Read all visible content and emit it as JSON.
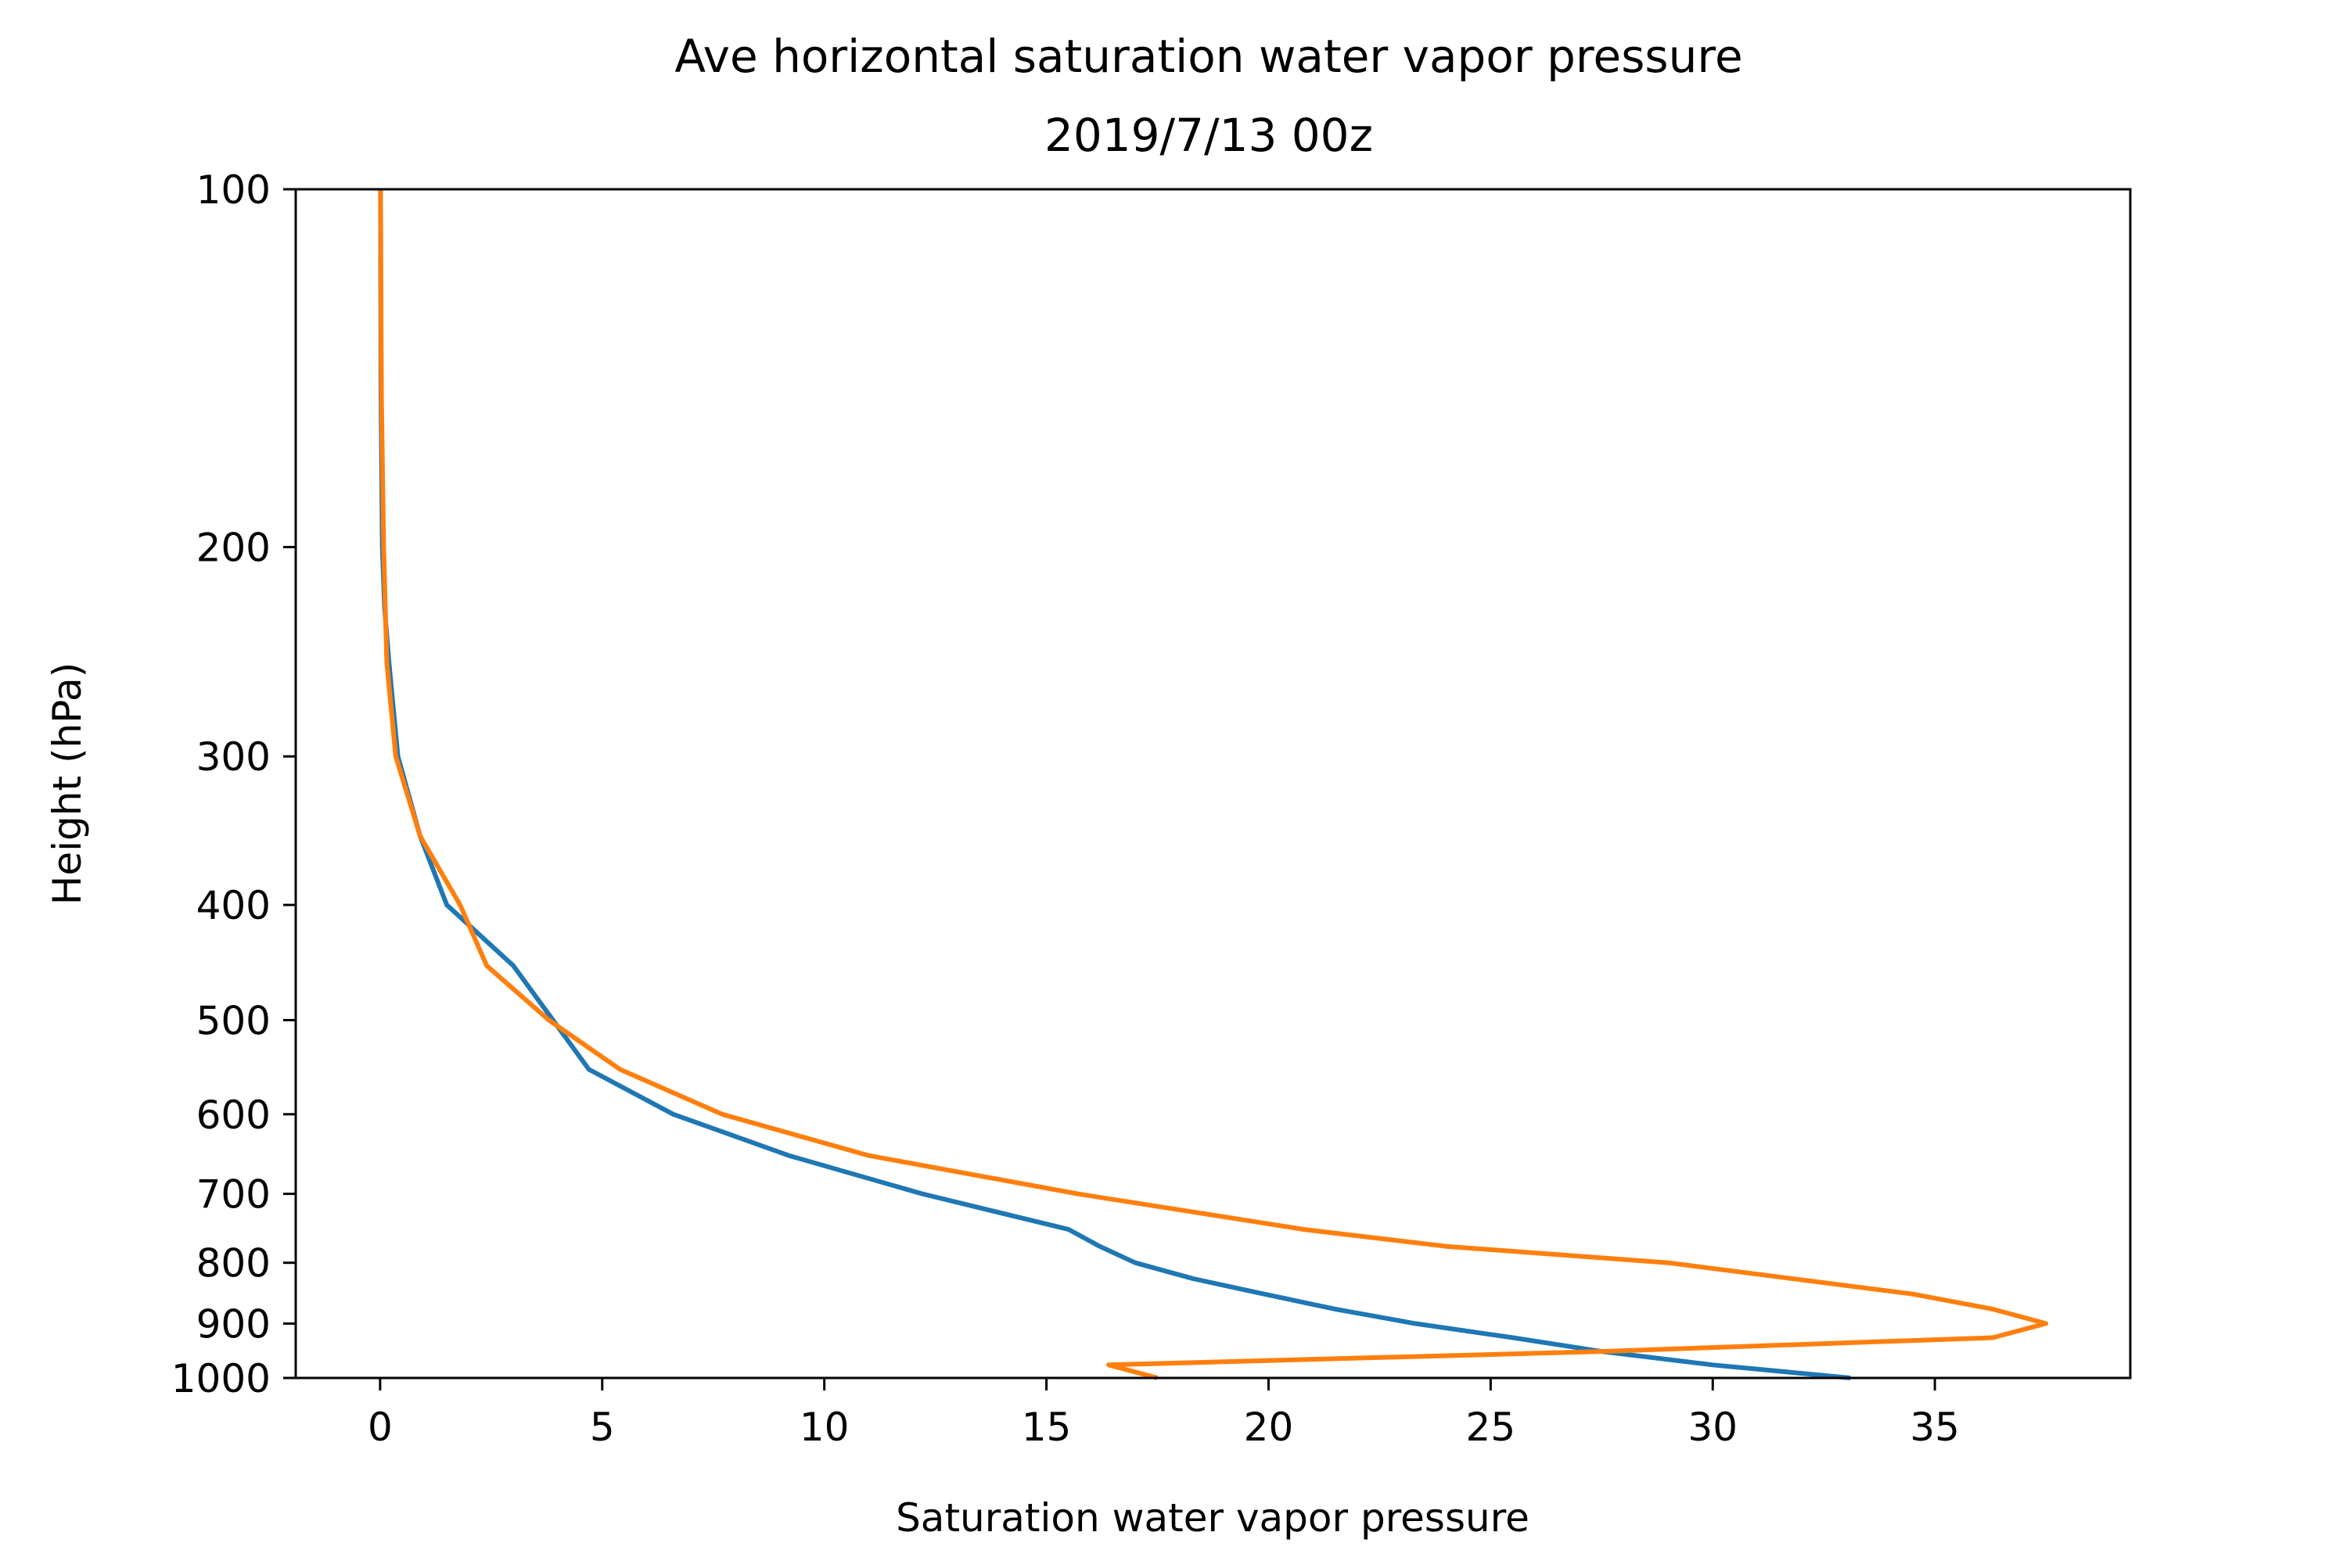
{
  "chart_data": {
    "type": "line",
    "title": "Ave horizontal saturation water vapor pressure",
    "subtitle": "2019/7/13 00z",
    "xlabel": "Saturation water vapor pressure",
    "ylabel": "Height (hPa)",
    "xlim": [
      -1.9,
      39.4
    ],
    "ylim": [
      1000,
      100
    ],
    "yscale": "log",
    "grid": false,
    "legend": "none",
    "xticks": [
      0,
      5,
      10,
      15,
      20,
      25,
      30,
      35
    ],
    "xtick_labels": [
      "0",
      "5",
      "10",
      "15",
      "20",
      "25",
      "30",
      "35"
    ],
    "yticks": [
      100,
      200,
      300,
      400,
      500,
      600,
      700,
      800,
      900,
      1000
    ],
    "ytick_labels": [
      "100",
      "200",
      "300",
      "400",
      "500",
      "600",
      "700",
      "800",
      "900",
      "1000"
    ],
    "series": [
      {
        "color": "#1f77b4",
        "points": [
          [
            33.1,
            1000
          ],
          [
            30.0,
            975
          ],
          [
            27.5,
            950
          ],
          [
            25.5,
            925
          ],
          [
            23.3,
            900
          ],
          [
            21.5,
            875
          ],
          [
            19.9,
            850
          ],
          [
            18.3,
            825
          ],
          [
            17.0,
            800
          ],
          [
            16.2,
            775
          ],
          [
            15.5,
            750
          ],
          [
            12.2,
            700
          ],
          [
            9.2,
            650
          ],
          [
            6.6,
            600
          ],
          [
            4.7,
            550
          ],
          [
            3.0,
            450
          ],
          [
            1.5,
            400
          ],
          [
            0.9,
            350
          ],
          [
            0.4,
            300
          ],
          [
            0.2,
            250
          ],
          [
            0.1,
            225
          ],
          [
            0.05,
            200
          ],
          [
            0.02,
            150
          ],
          [
            0.01,
            100
          ]
        ]
      },
      {
        "color": "#ff7f0e",
        "points": [
          [
            17.5,
            1000
          ],
          [
            16.4,
            975
          ],
          [
            27.5,
            950
          ],
          [
            36.3,
            925
          ],
          [
            37.5,
            900
          ],
          [
            36.3,
            875
          ],
          [
            34.5,
            850
          ],
          [
            29.0,
            800
          ],
          [
            24.0,
            775
          ],
          [
            20.8,
            750
          ],
          [
            15.7,
            700
          ],
          [
            11.0,
            650
          ],
          [
            7.7,
            600
          ],
          [
            5.4,
            550
          ],
          [
            3.8,
            500
          ],
          [
            2.4,
            450
          ],
          [
            1.8,
            400
          ],
          [
            0.9,
            350
          ],
          [
            0.35,
            300
          ],
          [
            0.15,
            250
          ],
          [
            0.08,
            200
          ],
          [
            0.03,
            150
          ],
          [
            0.01,
            100
          ]
        ]
      }
    ]
  }
}
